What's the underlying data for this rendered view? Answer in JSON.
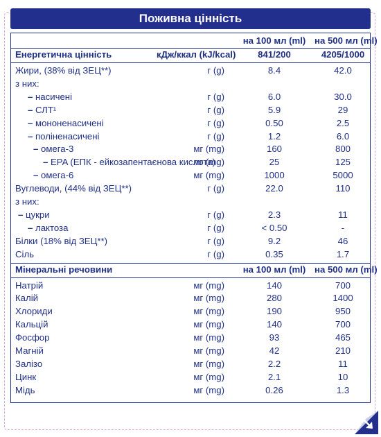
{
  "title": "Поживна цінність",
  "col_headers": {
    "per100": "на 100 мл (ml)",
    "per500": "на 500 мл (ml)"
  },
  "energy": {
    "name": "Енергетична цінність",
    "unit": "кДж/ккал (kJ/kcal)",
    "v100": "841/200",
    "v500": "4205/1000"
  },
  "nutrients": [
    {
      "name": "Жири, (38% від ЗЕЦ**)",
      "unit": "г (g)",
      "v100": "8.4",
      "v500": "42.0"
    },
    {
      "name": "з них:",
      "unit": "",
      "v100": "",
      "v500": ""
    },
    {
      "prefix": "–",
      "name": "насичені",
      "indent": 1,
      "unit": "г (g)",
      "v100": "6.0",
      "v500": "30.0"
    },
    {
      "prefix": "–",
      "name": "СЛТ¹",
      "indent": 1,
      "unit": "г (g)",
      "v100": "5.9",
      "v500": "29"
    },
    {
      "prefix": "–",
      "name": "мононенасичені",
      "indent": 1,
      "unit": "г (g)",
      "v100": "0.50",
      "v500": "2.5"
    },
    {
      "prefix": "–",
      "name": "поліненасичені",
      "indent": 1,
      "unit": "г (g)",
      "v100": "1.2",
      "v500": "6.0"
    },
    {
      "prefix": "–",
      "name": "омега-3",
      "indent": 2,
      "unit": "мг (mg)",
      "v100": "160",
      "v500": "800"
    },
    {
      "prefix": "–",
      "name": "EPA (ЕПК - ейкозапентаєнова кислота)",
      "indent": 3,
      "unit": "мг (mg)",
      "v100": "25",
      "v500": "125"
    },
    {
      "prefix": "–",
      "name": "омега-6",
      "indent": 2,
      "unit": "мг (mg)",
      "v100": "1000",
      "v500": "5000"
    },
    {
      "name": "Вуглеводи, (44% від ЗЕЦ**)",
      "unit": "г (g)",
      "v100": "22.0",
      "v500": "110"
    },
    {
      "name": "з них:",
      "unit": "",
      "v100": "",
      "v500": ""
    },
    {
      "prefix": "–",
      "name": "цукри",
      "indent": 0,
      "unit": "г (g)",
      "v100": "2.3",
      "v500": "11"
    },
    {
      "prefix": "–",
      "name": "лактоза",
      "indent": 1,
      "unit": "г (g)",
      "v100": "< 0.50",
      "v500": "-"
    },
    {
      "name": "Білки (18% від ЗЕЦ**)",
      "unit": "г (g)",
      "v100": "9.2",
      "v500": "46"
    },
    {
      "name": "Сіль",
      "unit": "г (g)",
      "v100": "0.35",
      "v500": "1.7"
    }
  ],
  "minerals_header": {
    "name": "Мінеральні речовини",
    "per100": "на 100 мл (ml)",
    "per500": "на 500 мл (ml)"
  },
  "minerals": [
    {
      "name": "Натрій",
      "unit": "мг (mg)",
      "v100": "140",
      "v500": "700"
    },
    {
      "name": "Калій",
      "unit": "мг (mg)",
      "v100": "280",
      "v500": "1400"
    },
    {
      "name": "Хлориди",
      "unit": "мг (mg)",
      "v100": "190",
      "v500": "950"
    },
    {
      "name": "Кальцій",
      "unit": "мг (mg)",
      "v100": "140",
      "v500": "700"
    },
    {
      "name": "Фосфор",
      "unit": "мг (mg)",
      "v100": "93",
      "v500": "465"
    },
    {
      "name": "Магній",
      "unit": "мг (mg)",
      "v100": "42",
      "v500": "210"
    },
    {
      "name": "Залізо",
      "unit": "мг (mg)",
      "v100": "2.2",
      "v500": "11"
    },
    {
      "name": "Цинк",
      "unit": "мг (mg)",
      "v100": "2.1",
      "v500": "10"
    },
    {
      "name": "Мідь",
      "unit": "мг (mg)",
      "v100": "0.26",
      "v500": "1.3"
    }
  ],
  "corner_icon": "page-curl-arrow-icon",
  "colors": {
    "primary": "#232f8c",
    "dashed_border": "#d7a6d7"
  }
}
